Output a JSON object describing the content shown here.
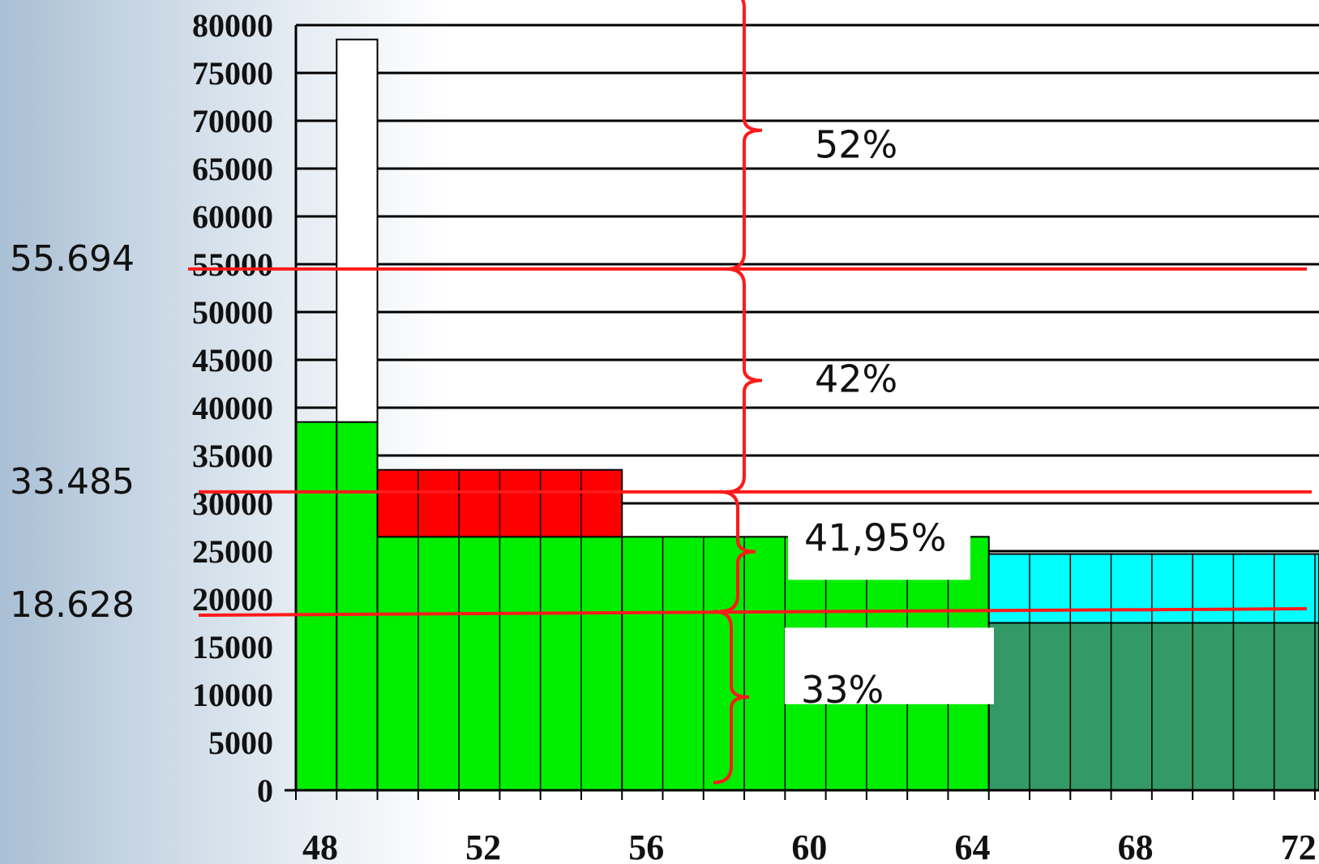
{
  "chart_data": {
    "type": "bar",
    "title": "",
    "xlabel": "",
    "ylabel": "",
    "ylim": [
      0,
      80000
    ],
    "y_ticks": [
      "0",
      "5000",
      "10000",
      "15000",
      "20000",
      "25000",
      "30000",
      "35000",
      "40000",
      "45000",
      "50000",
      "55000",
      "60000",
      "65000",
      "70000",
      "75000",
      "80000"
    ],
    "x_ticks": [
      "48",
      "52",
      "56",
      "60",
      "64",
      "68",
      "72"
    ],
    "xlim": [
      47.9,
      73
    ],
    "grid": true,
    "legend": "none",
    "bars": [
      {
        "x0": 47.9,
        "x1": 48.9,
        "segments": [
          {
            "value": 38500,
            "color": "#00ee00"
          }
        ]
      },
      {
        "x0": 48.9,
        "x1": 49.9,
        "segments": [
          {
            "value": 38500,
            "color": "#00ee00"
          },
          {
            "value": 40000,
            "color": "#ffffff"
          }
        ]
      },
      {
        "x0": 49.9,
        "x1": 55.9,
        "segments": [
          {
            "value": 26500,
            "color": "#00ee00"
          },
          {
            "value": 7000,
            "color": "#ff0000"
          }
        ]
      },
      {
        "x0": 55.9,
        "x1": 64.9,
        "segments": [
          {
            "value": 26500,
            "color": "#00ee00"
          }
        ]
      },
      {
        "x0": 64.9,
        "x1": 73,
        "segments": [
          {
            "value": 17500,
            "color": "#339966"
          },
          {
            "value": 7200,
            "color": "#00ffff"
          }
        ]
      }
    ],
    "reference_lines": [
      {
        "label": "55.694",
        "value": 54500
      },
      {
        "label": "33.485",
        "value": 31200
      },
      {
        "label": "18.628",
        "value": 18300
      }
    ],
    "annotations": [
      {
        "label": "52%",
        "from": 54500,
        "to": 83500
      },
      {
        "label": "42%",
        "from": 31200,
        "to": 54500
      },
      {
        "label": "41,95%",
        "from": 18700,
        "to": 31200
      },
      {
        "label": "33%",
        "from": 800,
        "to": 18700
      }
    ]
  }
}
